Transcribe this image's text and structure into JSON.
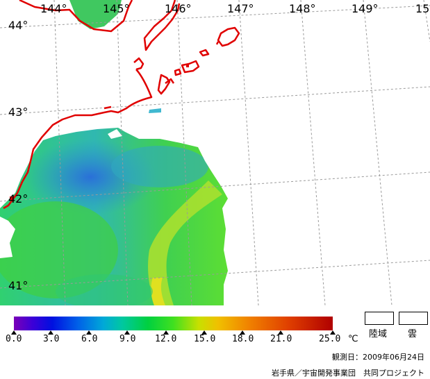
{
  "map": {
    "longitude_labels": [
      "144°",
      "145°",
      "146°",
      "147°",
      "148°",
      "149°",
      "15"
    ],
    "latitude_labels": [
      "44°",
      "43°",
      "42°",
      "41°"
    ],
    "colors": {
      "coastline": "#e00000",
      "grid": "#9a9a9a"
    }
  },
  "colorbar": {
    "ticks": [
      "0.0",
      "3.0",
      "6.0",
      "9.0",
      "12.0",
      "15.0",
      "18.0",
      "21.0",
      "25.0"
    ],
    "unit": "℃"
  },
  "legend": {
    "land": "陸域",
    "cloud": "雲"
  },
  "observation": {
    "date_text": "観測日：2009年06月24日"
  },
  "credit": "岩手県／宇宙開発事業団　共同プロジェクト"
}
